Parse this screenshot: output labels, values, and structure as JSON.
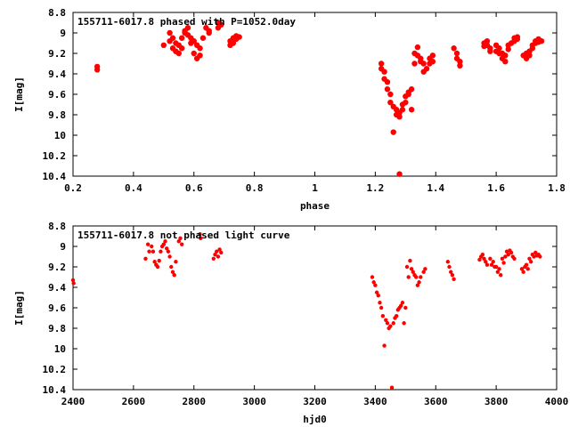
{
  "chart_data": [
    {
      "type": "scatter",
      "title": "155711-6017.8 phased with P=1052.0day",
      "xlabel": "phase",
      "ylabel": "I[mag]",
      "xlim": [
        0.2,
        1.8
      ],
      "ylim": [
        8.8,
        10.4
      ],
      "y_inverted": true,
      "xticks": [
        "0.2",
        "0.4",
        "0.6",
        "0.8",
        "1",
        "1.2",
        "1.4",
        "1.6",
        "1.8"
      ],
      "yticks": [
        "8.8",
        "9",
        "9.2",
        "9.4",
        "9.6",
        "9.8",
        "10",
        "10.2",
        "10.4"
      ],
      "grid": false,
      "color": "#ff0000",
      "series": [
        {
          "x": [
            0.28,
            0.28,
            0.5,
            0.52,
            0.52,
            0.53,
            0.53,
            0.54,
            0.54,
            0.55,
            0.55,
            0.56,
            0.56,
            0.57,
            0.57,
            0.58,
            0.58,
            0.59,
            0.59,
            0.6,
            0.6,
            0.61,
            0.61,
            0.62,
            0.62,
            0.63,
            0.64,
            0.65,
            0.65,
            0.68,
            0.68,
            0.69,
            0.72,
            0.72,
            0.73,
            0.73,
            0.74,
            0.74,
            0.75,
            1.22,
            1.22,
            1.23,
            1.23,
            1.24,
            1.24,
            1.25,
            1.25,
            1.26,
            1.26,
            1.27,
            1.27,
            1.28,
            1.28,
            1.28,
            1.29,
            1.29,
            1.3,
            1.3,
            1.31,
            1.31,
            1.32,
            1.32,
            1.33,
            1.33,
            1.34,
            1.34,
            1.35,
            1.35,
            1.36,
            1.36,
            1.37,
            1.38,
            1.38,
            1.39,
            1.39,
            1.46,
            1.47,
            1.47,
            1.48,
            1.48,
            1.56,
            1.56,
            1.57,
            1.57,
            1.58,
            1.58,
            1.6,
            1.6,
            1.61,
            1.61,
            1.62,
            1.62,
            1.63,
            1.63,
            1.64,
            1.64,
            1.65,
            1.66,
            1.66,
            1.67,
            1.67,
            1.69,
            1.7,
            1.7,
            1.71,
            1.71,
            1.72,
            1.72,
            1.73,
            1.73,
            1.74,
            1.74,
            1.75
          ],
          "y": [
            9.33,
            9.36,
            9.12,
            9.0,
            9.08,
            9.05,
            9.15,
            9.1,
            9.18,
            9.12,
            9.2,
            9.05,
            9.15,
            9.0,
            8.98,
            8.95,
            9.02,
            9.05,
            9.1,
            9.08,
            9.2,
            9.12,
            9.25,
            9.15,
            9.22,
            9.05,
            8.95,
            8.98,
            9.0,
            8.9,
            8.95,
            8.92,
            9.08,
            9.12,
            9.05,
            9.1,
            9.03,
            9.06,
            9.04,
            9.3,
            9.35,
            9.38,
            9.45,
            9.48,
            9.55,
            9.6,
            9.68,
            9.97,
            9.72,
            9.75,
            9.8,
            9.82,
            9.78,
            10.38,
            9.75,
            9.7,
            9.68,
            9.62,
            9.6,
            9.58,
            9.55,
            9.75,
            9.2,
            9.3,
            9.14,
            9.22,
            9.25,
            9.28,
            9.3,
            9.38,
            9.35,
            9.3,
            9.25,
            9.22,
            9.28,
            9.15,
            9.2,
            9.25,
            9.28,
            9.32,
            9.13,
            9.1,
            9.08,
            9.12,
            9.15,
            9.18,
            9.12,
            9.18,
            9.15,
            9.2,
            9.2,
            9.25,
            9.22,
            9.28,
            9.12,
            9.16,
            9.1,
            9.05,
            9.08,
            9.04,
            9.06,
            9.22,
            9.25,
            9.2,
            9.18,
            9.22,
            9.12,
            9.15,
            9.08,
            9.1,
            9.06,
            9.09,
            9.08
          ]
        }
      ]
    },
    {
      "type": "scatter",
      "title": "155711-6017.8 not phased light curve",
      "xlabel": "hjd0",
      "ylabel": "I[mag]",
      "xlim": [
        2400,
        4000
      ],
      "ylim": [
        8.8,
        10.4
      ],
      "y_inverted": true,
      "xticks": [
        "2400",
        "2600",
        "2800",
        "3000",
        "3200",
        "3400",
        "3600",
        "3800",
        "4000"
      ],
      "yticks": [
        "8.8",
        "9",
        "9.2",
        "9.4",
        "9.6",
        "9.8",
        "10",
        "10.2",
        "10.4"
      ],
      "grid": false,
      "color": "#ff0000",
      "series": [
        {
          "x": [
            2400,
            2402,
            2640,
            2648,
            2652,
            2660,
            2665,
            2670,
            2675,
            2680,
            2685,
            2690,
            2695,
            2700,
            2705,
            2710,
            2715,
            2720,
            2725,
            2730,
            2735,
            2740,
            2750,
            2755,
            2760,
            2820,
            2822,
            2865,
            2870,
            2875,
            2880,
            2885,
            2890,
            3390,
            3395,
            3400,
            3405,
            3410,
            3415,
            3420,
            3425,
            3430,
            3435,
            3440,
            3445,
            3450,
            3455,
            3460,
            3465,
            3470,
            3475,
            3480,
            3485,
            3490,
            3495,
            3500,
            3505,
            3510,
            3515,
            3520,
            3525,
            3530,
            3535,
            3540,
            3545,
            3550,
            3560,
            3565,
            3640,
            3645,
            3650,
            3655,
            3660,
            3745,
            3750,
            3755,
            3760,
            3765,
            3770,
            3780,
            3785,
            3790,
            3795,
            3800,
            3805,
            3810,
            3815,
            3820,
            3825,
            3830,
            3835,
            3840,
            3845,
            3850,
            3855,
            3860,
            3885,
            3890,
            3895,
            3900,
            3905,
            3910,
            3915,
            3920,
            3925,
            3930,
            3935,
            3940,
            3945
          ],
          "y": [
            9.33,
            9.36,
            9.12,
            8.98,
            9.05,
            9.0,
            9.05,
            9.15,
            9.18,
            9.2,
            9.14,
            9.05,
            9.0,
            8.98,
            8.95,
            9.02,
            9.05,
            9.1,
            9.2,
            9.25,
            9.28,
            9.15,
            8.95,
            8.92,
            8.98,
            8.88,
            8.92,
            9.12,
            9.08,
            9.05,
            9.1,
            9.03,
            9.06,
            9.3,
            9.35,
            9.38,
            9.45,
            9.48,
            9.55,
            9.6,
            9.68,
            9.97,
            9.72,
            9.75,
            9.8,
            9.78,
            10.38,
            9.75,
            9.7,
            9.68,
            9.62,
            9.6,
            9.58,
            9.55,
            9.75,
            9.6,
            9.2,
            9.3,
            9.14,
            9.22,
            9.25,
            9.28,
            9.3,
            9.38,
            9.35,
            9.3,
            9.25,
            9.22,
            9.15,
            9.2,
            9.25,
            9.28,
            9.32,
            9.13,
            9.1,
            9.08,
            9.12,
            9.15,
            9.18,
            9.12,
            9.18,
            9.15,
            9.2,
            9.2,
            9.25,
            9.22,
            9.28,
            9.12,
            9.16,
            9.1,
            9.05,
            9.08,
            9.04,
            9.06,
            9.1,
            9.12,
            9.22,
            9.25,
            9.2,
            9.18,
            9.22,
            9.12,
            9.15,
            9.08,
            9.1,
            9.06,
            9.09,
            9.08,
            9.1
          ]
        }
      ]
    }
  ]
}
